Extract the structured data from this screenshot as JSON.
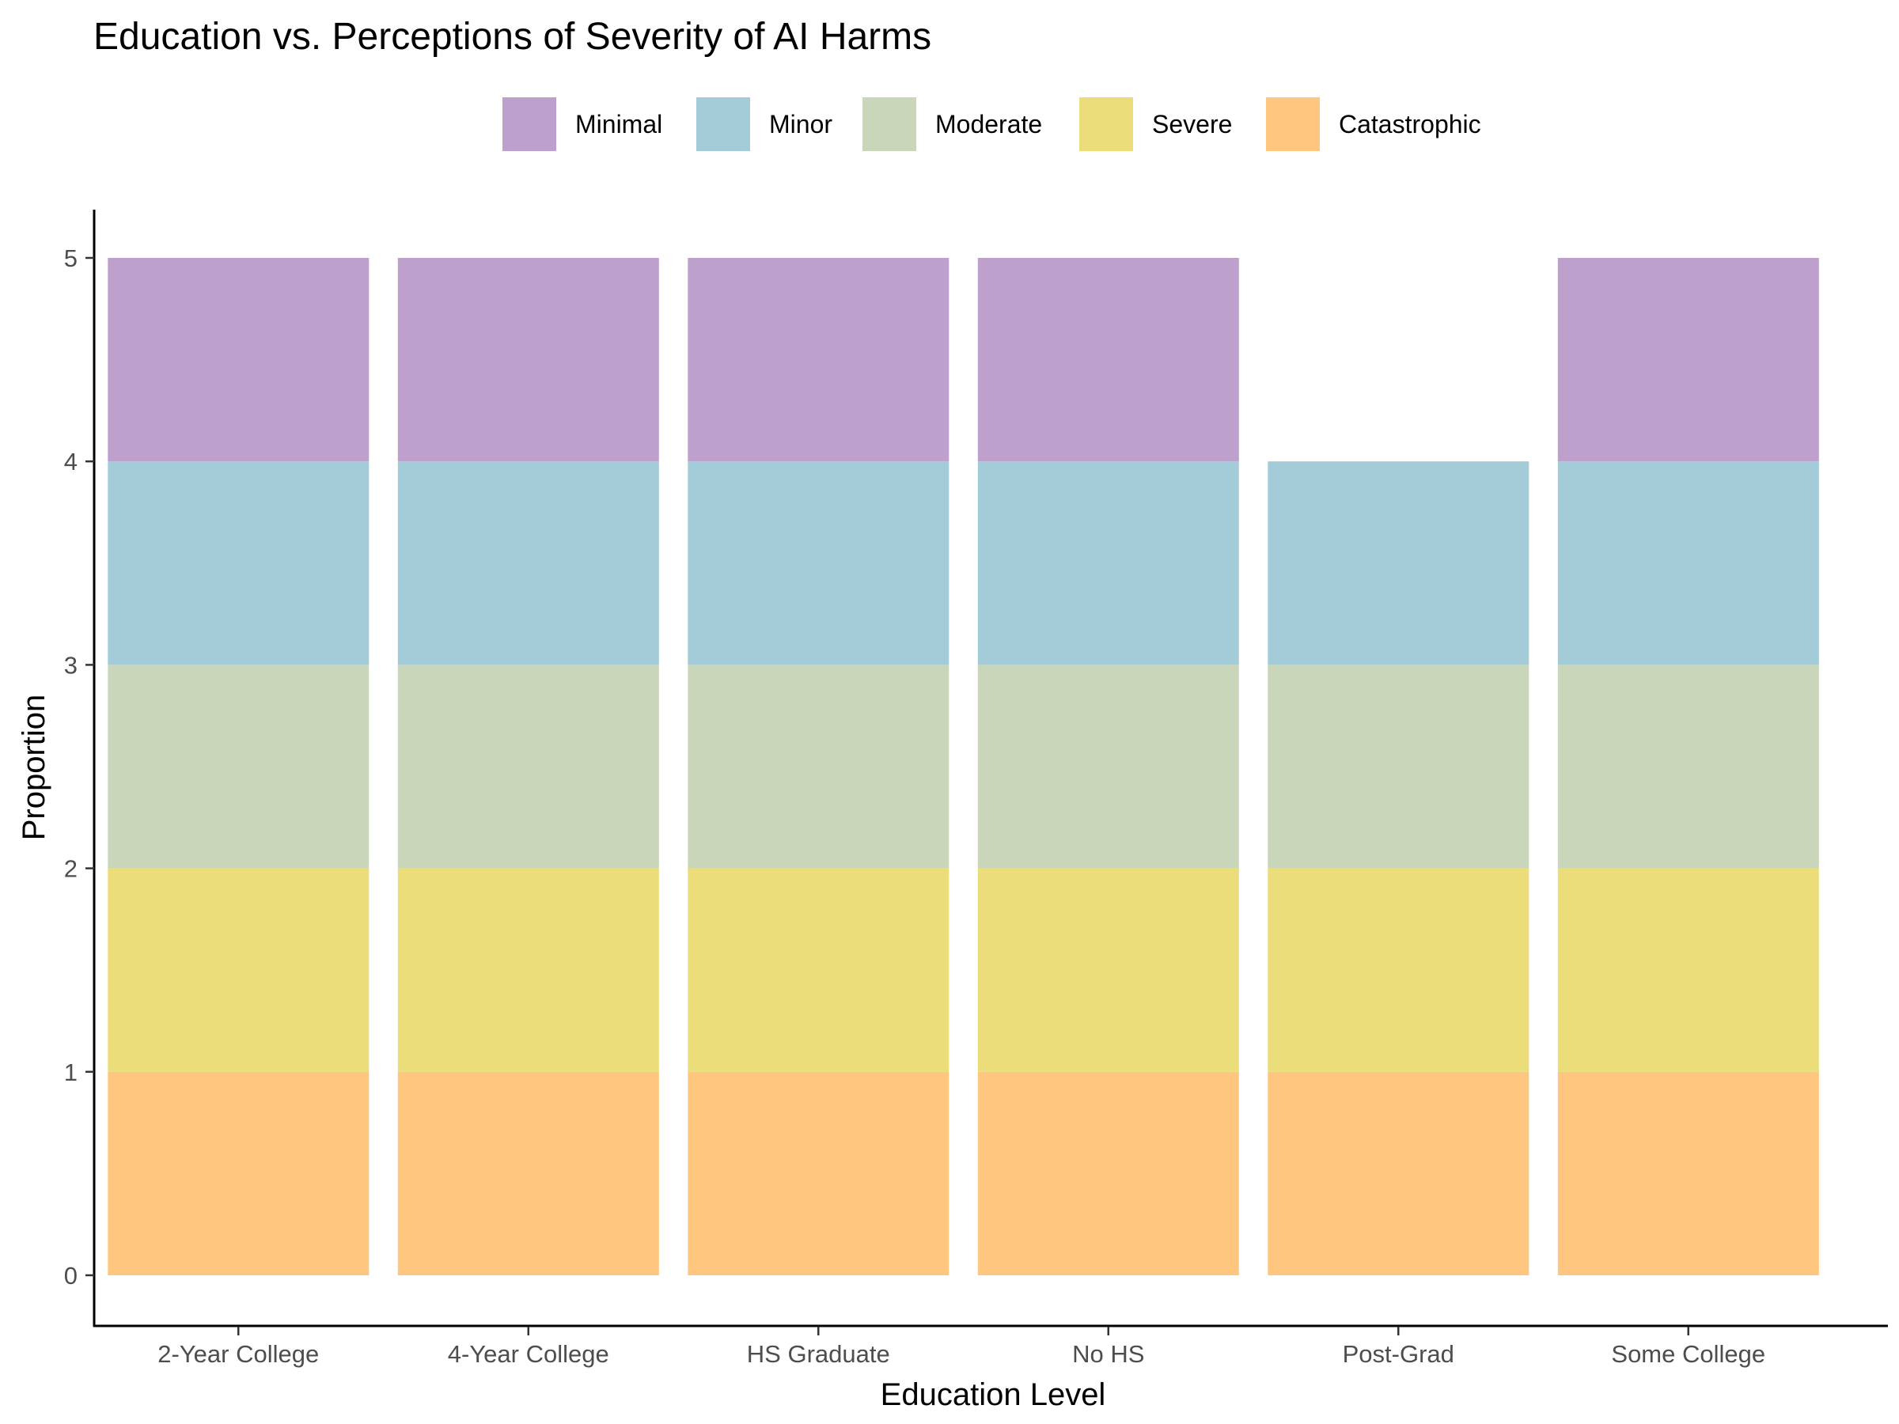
{
  "chart_data": {
    "type": "bar",
    "stacked": true,
    "title": "Education vs. Perceptions of Severity of AI Harms",
    "xlabel": "Education Level",
    "ylabel": "Proportion",
    "ylim": [
      0,
      5
    ],
    "yticks": [
      0,
      1,
      2,
      3,
      4,
      5
    ],
    "legend_position": "top",
    "categories": [
      "2-Year College",
      "4-Year College",
      "HS Graduate",
      "No HS",
      "Post-Grad",
      "Some College"
    ],
    "series": [
      {
        "name": "Catastrophic",
        "color": "#fec67e",
        "values": [
          1,
          1,
          1,
          1,
          1,
          1
        ]
      },
      {
        "name": "Severe",
        "color": "#ecdd7b",
        "values": [
          1,
          1,
          1,
          1,
          1,
          1
        ]
      },
      {
        "name": "Moderate",
        "color": "#c9d6b9",
        "values": [
          1,
          1,
          1,
          1,
          1,
          1
        ]
      },
      {
        "name": "Minor",
        "color": "#a3ccd8",
        "values": [
          1,
          1,
          1,
          1,
          1,
          1
        ]
      },
      {
        "name": "Minimal",
        "color": "#bea0cc",
        "values": [
          1,
          1,
          1,
          1,
          0,
          1
        ]
      }
    ],
    "legend_order": [
      "Minimal",
      "Minor",
      "Moderate",
      "Severe",
      "Catastrophic"
    ]
  }
}
